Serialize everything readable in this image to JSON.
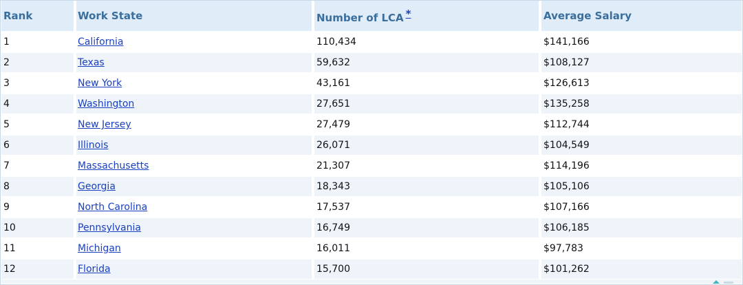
{
  "table": {
    "headers": {
      "rank": "Rank",
      "work_state": "Work State",
      "number_of_lca": "Number of LCA",
      "footnote_marker": "*",
      "average_salary": "Average Salary"
    },
    "rows": [
      {
        "rank": "1",
        "state": "California",
        "lca": "110,434",
        "salary": "$141,166"
      },
      {
        "rank": "2",
        "state": "Texas",
        "lca": "59,632",
        "salary": "$108,127"
      },
      {
        "rank": "3",
        "state": "New York",
        "lca": "43,161",
        "salary": "$126,613"
      },
      {
        "rank": "4",
        "state": "Washington",
        "lca": "27,651",
        "salary": "$135,258"
      },
      {
        "rank": "5",
        "state": "New Jersey",
        "lca": "27,479",
        "salary": "$112,744"
      },
      {
        "rank": "6",
        "state": "Illinois",
        "lca": "26,071",
        "salary": "$104,549"
      },
      {
        "rank": "7",
        "state": "Massachusetts",
        "lca": "21,307",
        "salary": "$114,196"
      },
      {
        "rank": "8",
        "state": "Georgia",
        "lca": "18,343",
        "salary": "$105,106"
      },
      {
        "rank": "9",
        "state": "North Carolina",
        "lca": "17,537",
        "salary": "$107,166"
      },
      {
        "rank": "10",
        "state": "Pennsylvania",
        "lca": "16,749",
        "salary": "$106,185"
      },
      {
        "rank": "11",
        "state": "Michigan",
        "lca": "16,011",
        "salary": "$97,783"
      },
      {
        "rank": "12",
        "state": "Florida",
        "lca": "15,700",
        "salary": "$101,262"
      }
    ]
  },
  "colors": {
    "header_background": "#e0ecf7",
    "header_text": "#3a6f9d",
    "alt_row_background": "#eef4fa",
    "link": "#1a3fbf"
  }
}
